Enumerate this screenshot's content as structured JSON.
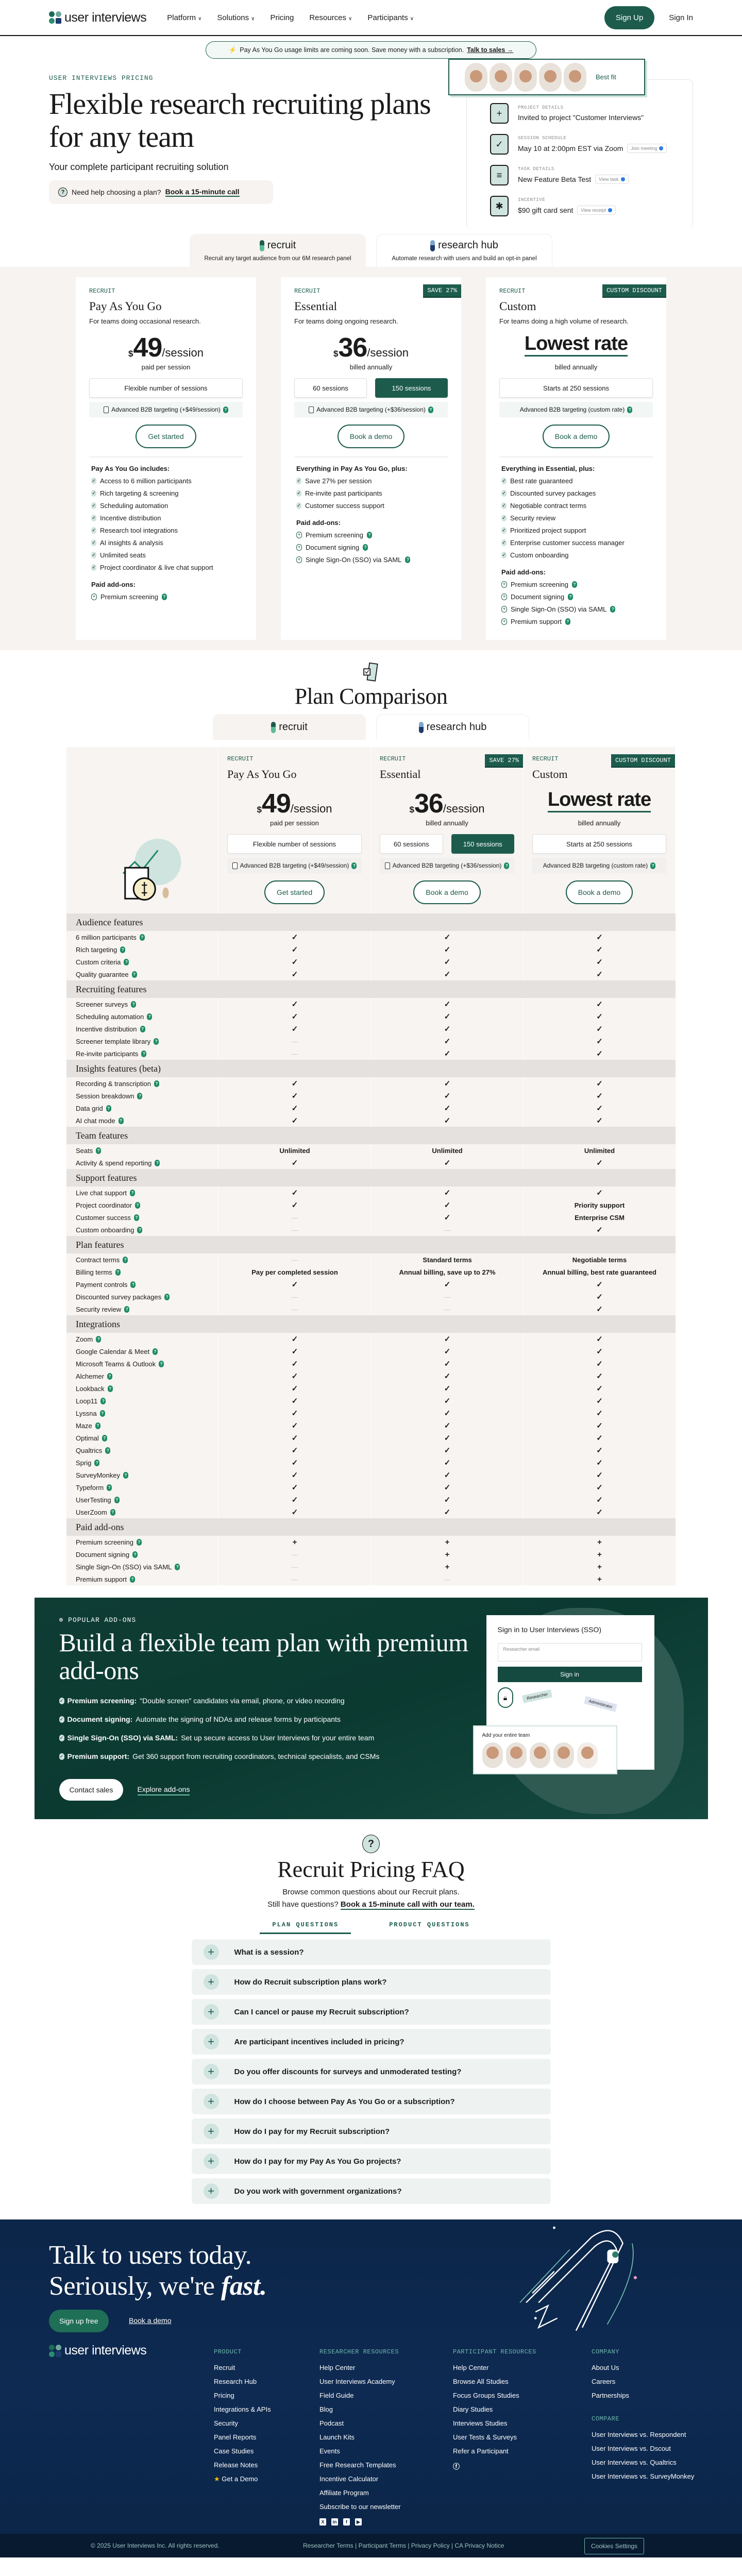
{
  "nav": {
    "logo": "user interviews",
    "items": [
      {
        "label": "Platform",
        "dropdown": true
      },
      {
        "label": "Solutions",
        "dropdown": true
      },
      {
        "label": "Pricing",
        "dropdown": false
      },
      {
        "label": "Resources",
        "dropdown": true
      },
      {
        "label": "Participants",
        "dropdown": true
      }
    ],
    "sign_up": "Sign Up",
    "sign_in": "Sign In"
  },
  "announcement": {
    "text": "Pay As You Go usage limits are coming soon. Save money with a subscription.",
    "link": "Talk to sales →"
  },
  "hero": {
    "eyebrow": "USER INTERVIEWS PRICING",
    "title": "Flexible research recruiting plans for any team",
    "subtitle": "Your complete participant recruiting solution",
    "help_text": "Need help choosing a plan?",
    "help_link": "Book a 15-minute call",
    "illustration": {
      "best_fit": "Best fit",
      "items": [
        {
          "label": "PROJECT DETAILS",
          "text": "Invited to project \"Customer Interviews\"",
          "chip": "",
          "icon": "plus-icon"
        },
        {
          "label": "SESSION SCHEDULE",
          "text": "May 10 at 2:00pm EST via Zoom",
          "chip": "Join meeting",
          "icon": "calendar-icon"
        },
        {
          "label": "TASK DETAILS",
          "text": "New Feature Beta Test",
          "chip": "View task",
          "icon": "task-icon"
        },
        {
          "label": "INCENTIVE",
          "text": "$90 gift card sent",
          "chip": "View receipt",
          "icon": "gift-icon"
        }
      ]
    }
  },
  "product_tabs": [
    {
      "name": "recruit",
      "desc": "Recruit any target audience from our 6M research panel",
      "active": true
    },
    {
      "name": "research hub",
      "desc": "Automate research with users and build an opt-in panel",
      "active": false
    }
  ],
  "plans": [
    {
      "eyebrow": "RECRUIT",
      "badge": "",
      "name": "Pay As You Go",
      "desc": "For teams doing occasional research.",
      "currency": "$",
      "amount": "49",
      "unit": "/session",
      "lowest": "",
      "billing": "paid per session",
      "sessions": [
        {
          "label": "Flexible number of sessions",
          "selected": false
        }
      ],
      "b2b": "Advanced B2B targeting (+$49/session)",
      "b2b_checkbox": true,
      "cta": "Get started",
      "features_heading": "Pay As You Go includes:",
      "features": [
        "Access to 6 million participants",
        "Rich targeting & screening",
        "Scheduling automation",
        "Incentive distribution",
        "Research tool integrations",
        "AI insights & analysis",
        "Unlimited seats",
        "Project coordinator & live chat support"
      ],
      "addons_heading": "Paid add-ons:",
      "addons": [
        "Premium screening"
      ]
    },
    {
      "eyebrow": "RECRUIT",
      "badge": "SAVE 27%",
      "name": "Essential",
      "desc": "For teams doing ongoing research.",
      "currency": "$",
      "amount": "36",
      "unit": "/session",
      "lowest": "",
      "billing": "billed annually",
      "sessions": [
        {
          "label": "60 sessions",
          "selected": false
        },
        {
          "label": "150 sessions",
          "selected": true
        }
      ],
      "b2b": "Advanced B2B targeting (+$36/session)",
      "b2b_checkbox": true,
      "cta": "Book a demo",
      "features_heading": "Everything in Pay As You Go, plus:",
      "features": [
        "Save 27% per session",
        "Re-invite past participants",
        "Customer success support"
      ],
      "addons_heading": "Paid add-ons:",
      "addons": [
        "Premium screening",
        "Document signing",
        "Single Sign-On (SSO) via SAML"
      ]
    },
    {
      "eyebrow": "RECRUIT",
      "badge": "CUSTOM DISCOUNT",
      "name": "Custom",
      "desc": "For teams doing a high volume of research.",
      "currency": "",
      "amount": "",
      "unit": "",
      "lowest": "Lowest rate",
      "billing": "billed annually",
      "sessions": [
        {
          "label": "Starts at 250 sessions",
          "selected": false
        }
      ],
      "b2b": "Advanced B2B targeting (custom rate)",
      "b2b_checkbox": false,
      "cta": "Book a demo",
      "features_heading": "Everything in Essential, plus:",
      "features": [
        "Best rate guaranteed",
        "Discounted survey packages",
        "Negotiable contract terms",
        "Security review",
        "Prioritized project support",
        "Enterprise customer success manager",
        "Custom onboarding"
      ],
      "addons_heading": "Paid add-ons:",
      "addons": [
        "Premium screening",
        "Document signing",
        "Single Sign-On (SSO) via SAML",
        "Premium support"
      ]
    }
  ],
  "comparison": {
    "title": "Plan Comparison",
    "sections": [
      {
        "title": "Audience features",
        "rows": [
          {
            "label": "6 million participants",
            "values": [
              "check",
              "check",
              "check"
            ]
          },
          {
            "label": "Rich targeting",
            "values": [
              "check",
              "check",
              "check"
            ]
          },
          {
            "label": "Custom criteria",
            "values": [
              "check",
              "check",
              "check"
            ]
          },
          {
            "label": "Quality guarantee",
            "values": [
              "check",
              "check",
              "check"
            ]
          }
        ]
      },
      {
        "title": "Recruiting features",
        "rows": [
          {
            "label": "Screener surveys",
            "values": [
              "check",
              "check",
              "check"
            ]
          },
          {
            "label": "Scheduling automation",
            "values": [
              "check",
              "check",
              "check"
            ]
          },
          {
            "label": "Incentive distribution",
            "values": [
              "check",
              "check",
              "check"
            ]
          },
          {
            "label": "Screener template library",
            "values": [
              "dash",
              "check",
              "check"
            ]
          },
          {
            "label": "Re-invite participants",
            "values": [
              "dash",
              "check",
              "check"
            ]
          }
        ]
      },
      {
        "title": "Insights features (beta)",
        "rows": [
          {
            "label": "Recording & transcription",
            "values": [
              "check",
              "check",
              "check"
            ]
          },
          {
            "label": "Session breakdown",
            "values": [
              "check",
              "check",
              "check"
            ]
          },
          {
            "label": "Data grid",
            "values": [
              "check",
              "check",
              "check"
            ]
          },
          {
            "label": "AI chat mode",
            "values": [
              "check",
              "check",
              "check"
            ]
          }
        ]
      },
      {
        "title": "Team features",
        "rows": [
          {
            "label": "Seats",
            "values": [
              "Unlimited",
              "Unlimited",
              "Unlimited"
            ]
          },
          {
            "label": "Activity & spend reporting",
            "values": [
              "check",
              "check",
              "check"
            ]
          }
        ]
      },
      {
        "title": "Support features",
        "rows": [
          {
            "label": "Live chat support",
            "values": [
              "check",
              "check",
              "check"
            ]
          },
          {
            "label": "Project coordinator",
            "values": [
              "check",
              "check",
              "Priority support"
            ]
          },
          {
            "label": "Customer success",
            "values": [
              "dash",
              "check",
              "Enterprise CSM"
            ]
          },
          {
            "label": "Custom onboarding",
            "values": [
              "dash",
              "dash",
              "check"
            ]
          }
        ]
      },
      {
        "title": "Plan features",
        "rows": [
          {
            "label": "Contract terms",
            "values": [
              "dash",
              "Standard terms",
              "Negotiable terms"
            ]
          },
          {
            "label": "Billing terms",
            "values": [
              "Pay per completed session",
              "Annual billing, save up to 27%",
              "Annual billing, best rate guaranteed"
            ]
          },
          {
            "label": "Payment controls",
            "values": [
              "check",
              "check",
              "check"
            ]
          },
          {
            "label": "Discounted survey packages",
            "values": [
              "dash",
              "dash",
              "check"
            ]
          },
          {
            "label": "Security review",
            "values": [
              "dash",
              "dash",
              "check"
            ]
          }
        ]
      },
      {
        "title": "Integrations",
        "rows": [
          {
            "label": "Zoom",
            "values": [
              "check",
              "check",
              "check"
            ]
          },
          {
            "label": "Google Calendar & Meet",
            "values": [
              "check",
              "check",
              "check"
            ]
          },
          {
            "label": "Microsoft Teams & Outlook",
            "values": [
              "check",
              "check",
              "check"
            ]
          },
          {
            "label": "Alchemer",
            "values": [
              "check",
              "check",
              "check"
            ]
          },
          {
            "label": "Lookback",
            "values": [
              "check",
              "check",
              "check"
            ]
          },
          {
            "label": "Loop11",
            "values": [
              "check",
              "check",
              "check"
            ]
          },
          {
            "label": "Lyssna",
            "values": [
              "check",
              "check",
              "check"
            ]
          },
          {
            "label": "Maze",
            "values": [
              "check",
              "check",
              "check"
            ]
          },
          {
            "label": "Optimal",
            "values": [
              "check",
              "check",
              "check"
            ]
          },
          {
            "label": "Qualtrics",
            "values": [
              "check",
              "check",
              "check"
            ]
          },
          {
            "label": "Sprig",
            "values": [
              "check",
              "check",
              "check"
            ]
          },
          {
            "label": "SurveyMonkey",
            "values": [
              "check",
              "check",
              "check"
            ]
          },
          {
            "label": "Typeform",
            "values": [
              "check",
              "check",
              "check"
            ]
          },
          {
            "label": "UserTesting",
            "values": [
              "check",
              "check",
              "check"
            ]
          },
          {
            "label": "UserZoom",
            "values": [
              "check",
              "check",
              "check"
            ]
          }
        ]
      },
      {
        "title": "Paid add-ons",
        "rows": [
          {
            "label": "Premium screening",
            "values": [
              "plus",
              "plus",
              "plus"
            ]
          },
          {
            "label": "Document signing",
            "values": [
              "dash",
              "plus",
              "plus"
            ]
          },
          {
            "label": "Single Sign-On (SSO) via SAML",
            "values": [
              "dash",
              "plus",
              "plus"
            ]
          },
          {
            "label": "Premium support",
            "values": [
              "dash",
              "dash",
              "plus"
            ]
          }
        ]
      }
    ]
  },
  "addons_banner": {
    "eyebrow": "POPULAR ADD-ONS",
    "title": "Build a flexible team plan with premium add-ons",
    "bullets": [
      {
        "name": "Premium screening:",
        "text": "\"Double screen\" candidates via email, phone, or video recording"
      },
      {
        "name": "Document signing:",
        "text": "Automate the signing of NDAs and release forms by participants"
      },
      {
        "name": "Single Sign-On (SSO) via SAML:",
        "text": "Set up secure access to User Interviews for your entire team"
      },
      {
        "name": "Premium support:",
        "text": "Get 360 support from recruiting coordinators, technical specialists, and CSMs"
      }
    ],
    "contact": "Contact sales",
    "explore": "Explore add-ons",
    "illustration": {
      "sso_title": "Sign in to User Interviews (SSO)",
      "email_placeholder": "Researcher email",
      "sign_in": "Sign in",
      "tag_researcher": "Researcher",
      "tag_admin": "Administrator",
      "team_title": "Add your entire team"
    }
  },
  "faq": {
    "title": "Recruit Pricing FAQ",
    "subtitle": "Browse common questions about our Recruit plans.",
    "still": "Still have questions?",
    "link": "Book a 15-minute call with our team.",
    "tabs": [
      {
        "label": "PLAN QUESTIONS",
        "active": true
      },
      {
        "label": "PRODUCT QUESTIONS",
        "active": false
      }
    ],
    "items": [
      "What is a session?",
      "How do Recruit subscription plans work?",
      "Can I cancel or pause my Recruit subscription?",
      "Are participant incentives included in pricing?",
      "Do you offer discounts for surveys and unmoderated testing?",
      "How do I choose between Pay As You Go or a subscription?",
      "How do I pay for my Recruit subscription?",
      "How do I pay for my Pay As You Go projects?",
      "Do you work with government organizations?"
    ]
  },
  "footer": {
    "title_line1": "Talk to users today.",
    "title_line2": "Seriously, we're",
    "title_em": "fast.",
    "sign_up": "Sign up free",
    "demo": "Book a demo",
    "logo": "user interviews",
    "columns": [
      {
        "heading": "PRODUCT",
        "links": [
          "Recruit",
          "Research Hub",
          "Pricing",
          "Integrations & APIs",
          "Security",
          "Panel Reports",
          "Case Studies",
          "Release Notes",
          "Get a Demo"
        ]
      },
      {
        "heading": "RESEARCHER RESOURCES",
        "links": [
          "Help Center",
          "User Interviews Academy",
          "Field Guide",
          "Blog",
          "Podcast",
          "Launch Kits",
          "Events",
          "Free Research Templates",
          "Incentive Calculator",
          "Affiliate Program",
          "Subscribe to our newsletter"
        ]
      },
      {
        "heading": "PARTICIPANT RESOURCES",
        "links": [
          "Help Center",
          "Browse All Studies",
          "Focus Groups Studies",
          "Diary Studies",
          "Interviews Studies",
          "User Tests & Surveys",
          "Refer a Participant"
        ]
      },
      {
        "heading": "COMPANY",
        "links": [
          "About Us",
          "Careers",
          "Partnerships"
        ]
      }
    ],
    "compare_heading": "COMPARE",
    "compare_links": [
      "User Interviews vs. Respondent",
      "User Interviews vs. Dscout",
      "User Interviews vs. Qualtrics",
      "User Interviews vs. SurveyMonkey"
    ],
    "social": [
      "x-icon",
      "linkedin-icon",
      "facebook-icon",
      "youtube-icon"
    ],
    "copyright": "© 2025 User Interviews Inc.  All rights reserved.",
    "legal": [
      "Researcher Terms",
      "Participant Terms",
      "Privacy Policy",
      "CA Privacy Notice"
    ],
    "cookies": "Cookies Settings"
  },
  "colors": {
    "brand_green": "#1d5c4d",
    "banner_green": "#0f3d34",
    "footer_navy": "#0c2649",
    "beige": "#f6f3f0"
  }
}
